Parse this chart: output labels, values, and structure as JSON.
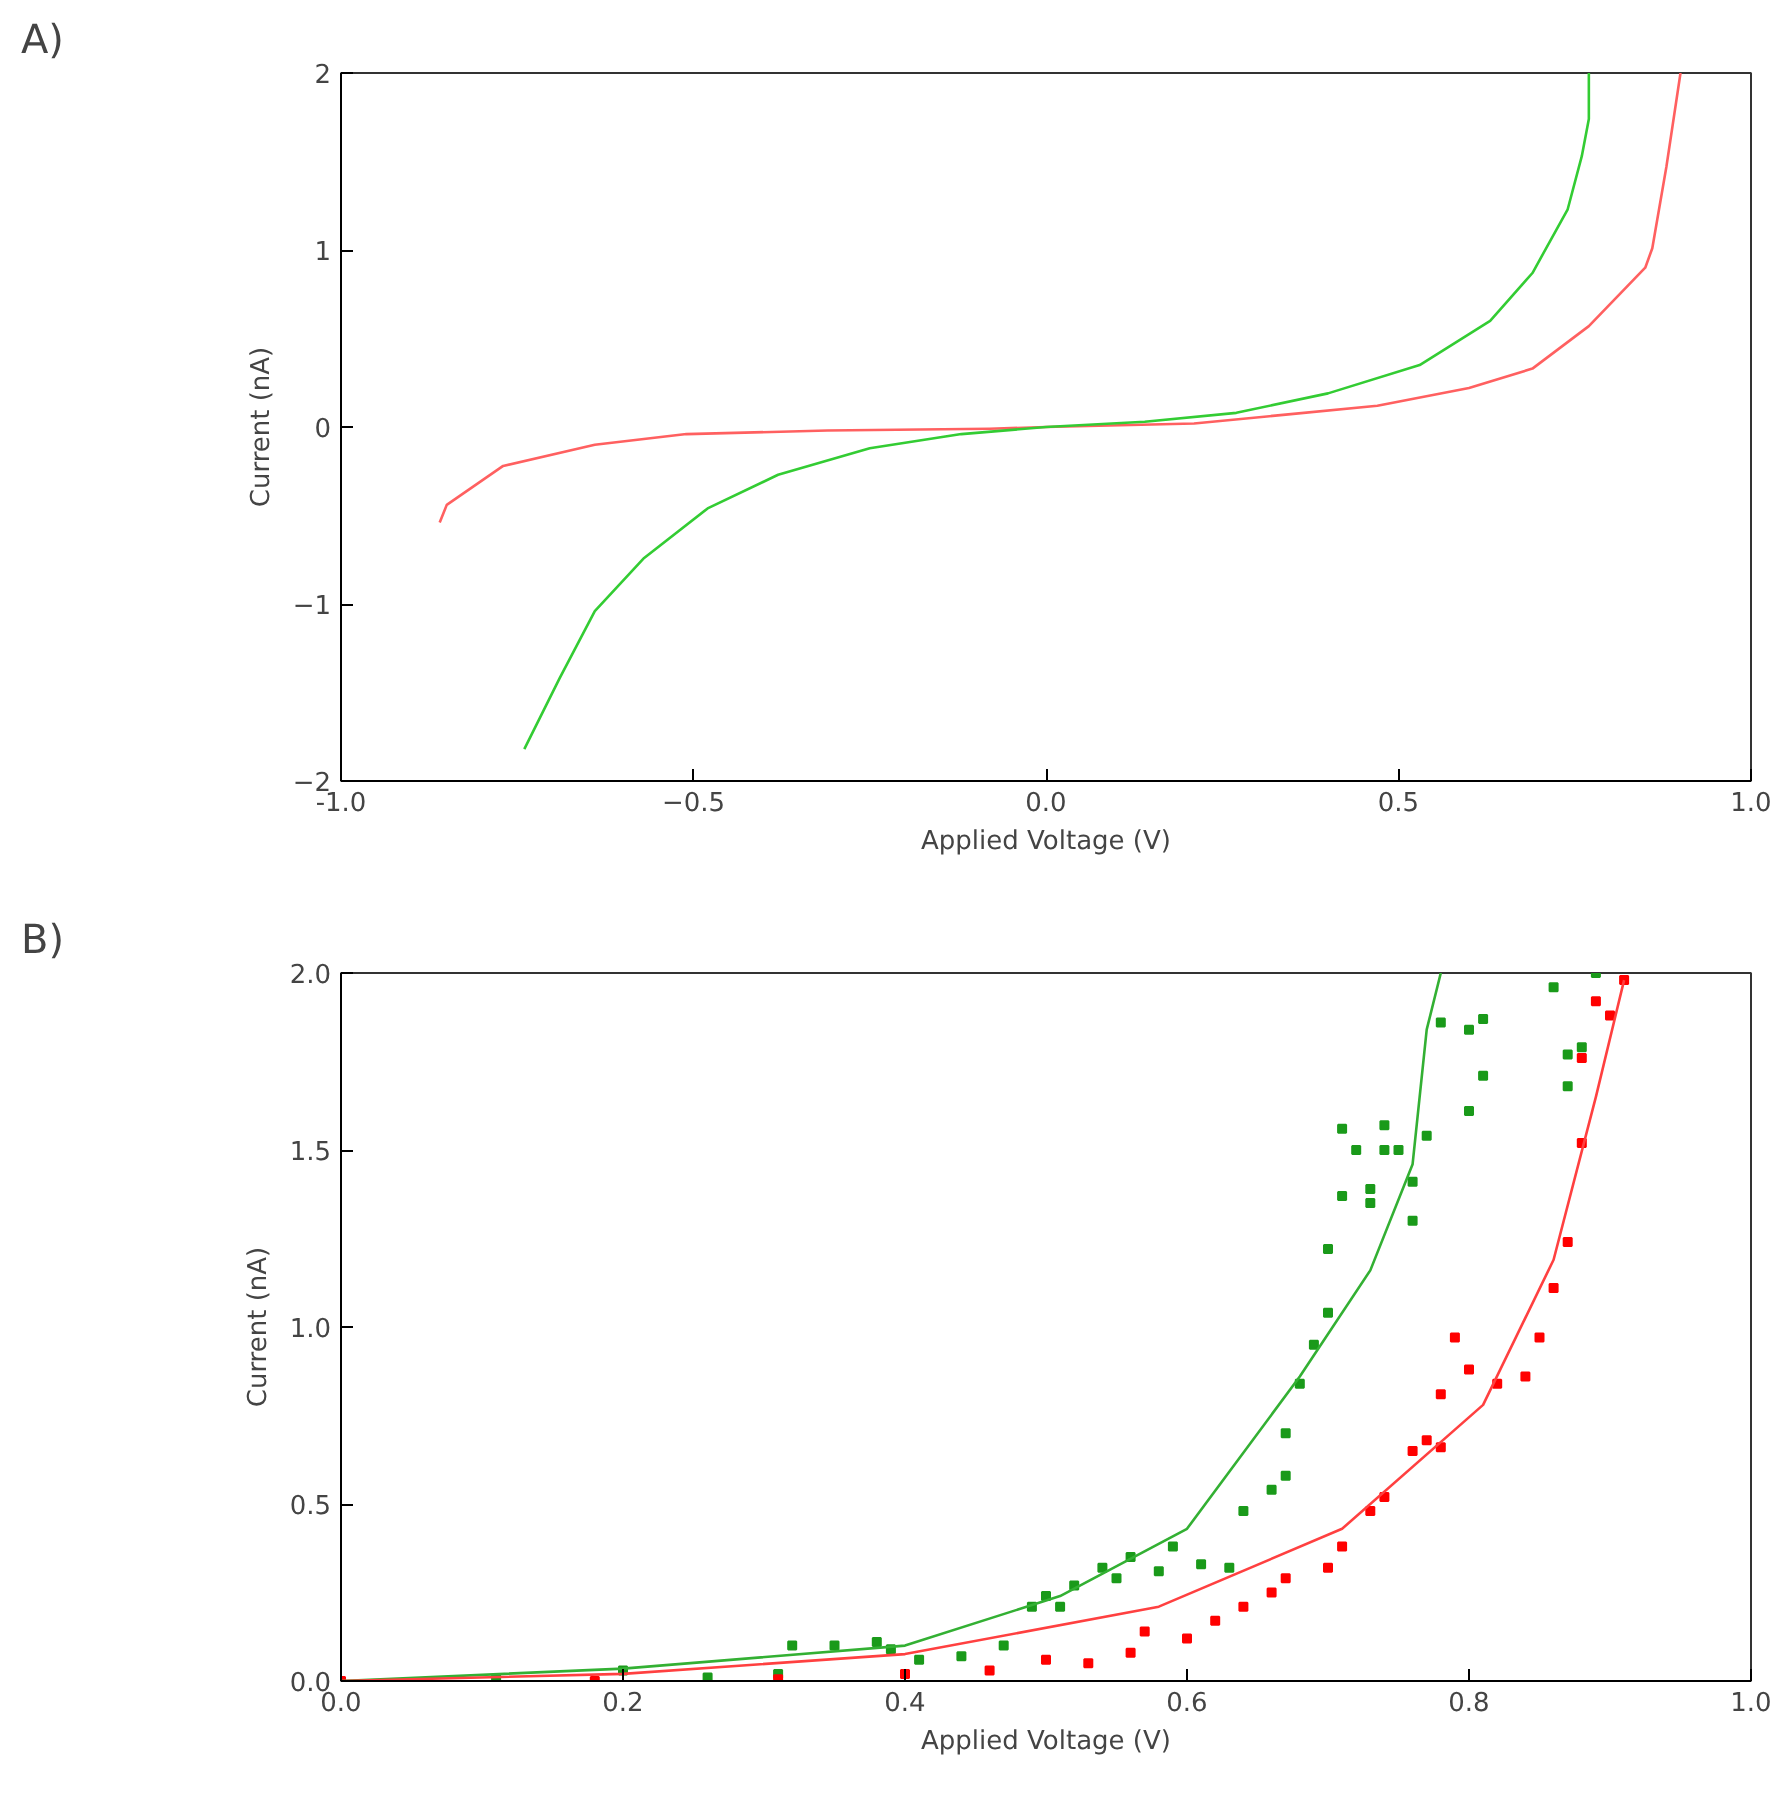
{
  "chart_data": [
    {
      "type": "line",
      "title": "A)",
      "xlabel": "Applied Voltage (V)",
      "ylabel": "Current (nA)",
      "xlim": [
        -1,
        1
      ],
      "ylim": [
        -2,
        2
      ],
      "xticks": [
        {
          "value": -1,
          "label": "-1.0"
        },
        -0.5,
        {
          "value": 0,
          "label": "0.0"
        },
        0.5,
        {
          "value": 1,
          "label": "1.0"
        }
      ],
      "yticks": [
        -2,
        -1,
        0,
        1,
        2
      ],
      "grid": false,
      "series": [
        {
          "color": "#ff6060",
          "x": [
            -0.86,
            -0.85,
            -0.77,
            -0.64,
            -0.51,
            -0.31,
            -0.08,
            0,
            0.21,
            0.34,
            0.47,
            0.6,
            0.69,
            0.77,
            0.85,
            0.86,
            0.88,
            0.9
          ],
          "values": [
            -0.54,
            -0.44,
            -0.22,
            -0.1,
            -0.04,
            -0.02,
            -0.01,
            0,
            0.02,
            0.07,
            0.12,
            0.22,
            0.33,
            0.57,
            0.9,
            1.01,
            1.47,
            2.0
          ]
        },
        {
          "color": "#33cc33",
          "x": [
            -0.74,
            -0.69,
            -0.64,
            -0.57,
            -0.48,
            -0.38,
            -0.25,
            -0.12,
            0,
            0.14,
            0.27,
            0.4,
            0.53,
            0.63,
            0.69,
            0.74,
            0.76,
            0.77,
            0.77
          ],
          "values": [
            -1.82,
            -1.42,
            -1.04,
            -0.74,
            -0.46,
            -0.27,
            -0.12,
            -0.04,
            0,
            0.03,
            0.08,
            0.19,
            0.35,
            0.6,
            0.87,
            1.23,
            1.53,
            1.74,
            2.0
          ]
        }
      ]
    },
    {
      "type": "line",
      "title": "B)",
      "xlabel": "Applied Voltage (V)",
      "ylabel": "Current (nA)",
      "xlim": [
        0,
        1
      ],
      "ylim": [
        0,
        2
      ],
      "xticks": [
        {
          "value": 0,
          "label": "0.0"
        },
        0.2,
        0.4,
        0.6,
        0.8,
        {
          "value": 1,
          "label": "1.0"
        }
      ],
      "yticks": [
        {
          "value": 0,
          "label": "0.0"
        },
        0.5,
        {
          "value": 1,
          "label": "1.0"
        },
        1.5,
        {
          "value": 2,
          "label": "2.0"
        }
      ],
      "grid": false,
      "series": [
        {
          "type": "scatter",
          "marker": "square",
          "color": "#1a9a1a",
          "x": [
            0.11,
            0.2,
            0.26,
            0.31,
            0.32,
            0.35,
            0.38,
            0.39,
            0.41,
            0.44,
            0.47,
            0.49,
            0.5,
            0.51,
            0.52,
            0.54,
            0.55,
            0.56,
            0.58,
            0.59,
            0.61,
            0.63,
            0.64,
            0.66,
            0.67,
            0.67,
            0.68,
            0.69,
            0.7,
            0.7,
            0.71,
            0.71,
            0.72,
            0.73,
            0.73,
            0.74,
            0.74,
            0.75,
            0.76,
            0.76,
            0.77,
            0.78,
            0.8,
            0.8,
            0.81,
            0.81,
            0.86,
            0.87,
            0.87,
            0.88,
            0.89
          ],
          "values": [
            0.005,
            0.03,
            0.01,
            0.02,
            0.1,
            0.1,
            0.11,
            0.09,
            0.06,
            0.07,
            0.1,
            0.21,
            0.24,
            0.21,
            0.27,
            0.32,
            0.29,
            0.35,
            0.31,
            0.38,
            0.33,
            0.32,
            0.48,
            0.54,
            0.58,
            0.7,
            0.84,
            0.95,
            1.04,
            1.22,
            1.37,
            1.56,
            1.5,
            1.35,
            1.39,
            1.5,
            1.57,
            1.5,
            1.41,
            1.3,
            1.54,
            1.86,
            1.84,
            1.61,
            1.71,
            1.87,
            1.96,
            1.77,
            1.68,
            1.79,
            2.0
          ]
        },
        {
          "type": "scatter",
          "marker": "square",
          "color": "#ff0000",
          "x": [
            0,
            0.18,
            0.31,
            0.4,
            0.46,
            0.5,
            0.53,
            0.56,
            0.57,
            0.6,
            0.62,
            0.64,
            0.66,
            0.67,
            0.7,
            0.71,
            0.73,
            0.74,
            0.76,
            0.77,
            0.78,
            0.78,
            0.79,
            0.8,
            0.82,
            0.84,
            0.85,
            0.86,
            0.87,
            0.88,
            0.88,
            0.89,
            0.9,
            0.91
          ],
          "values": [
            0,
            0,
            0.005,
            0.02,
            0.03,
            0.06,
            0.05,
            0.08,
            0.14,
            0.12,
            0.17,
            0.21,
            0.25,
            0.29,
            0.32,
            0.38,
            0.48,
            0.52,
            0.65,
            0.68,
            0.66,
            0.81,
            0.97,
            0.88,
            0.84,
            0.86,
            0.97,
            1.11,
            1.24,
            1.52,
            1.76,
            1.92,
            1.88,
            1.98
          ]
        },
        {
          "type": "line",
          "color": "#33b033",
          "x": [
            0,
            0.2,
            0.4,
            0.51,
            0.6,
            0.68,
            0.73,
            0.76,
            0.77,
            0.78
          ],
          "values": [
            0,
            0.035,
            0.1,
            0.24,
            0.43,
            0.86,
            1.16,
            1.46,
            1.84,
            2.0
          ]
        },
        {
          "type": "line",
          "color": "#ff4040",
          "x": [
            0,
            0.2,
            0.4,
            0.58,
            0.71,
            0.81,
            0.86,
            0.89,
            0.91
          ],
          "values": [
            0,
            0.02,
            0.076,
            0.21,
            0.43,
            0.78,
            1.19,
            1.65,
            1.98
          ]
        }
      ]
    }
  ]
}
